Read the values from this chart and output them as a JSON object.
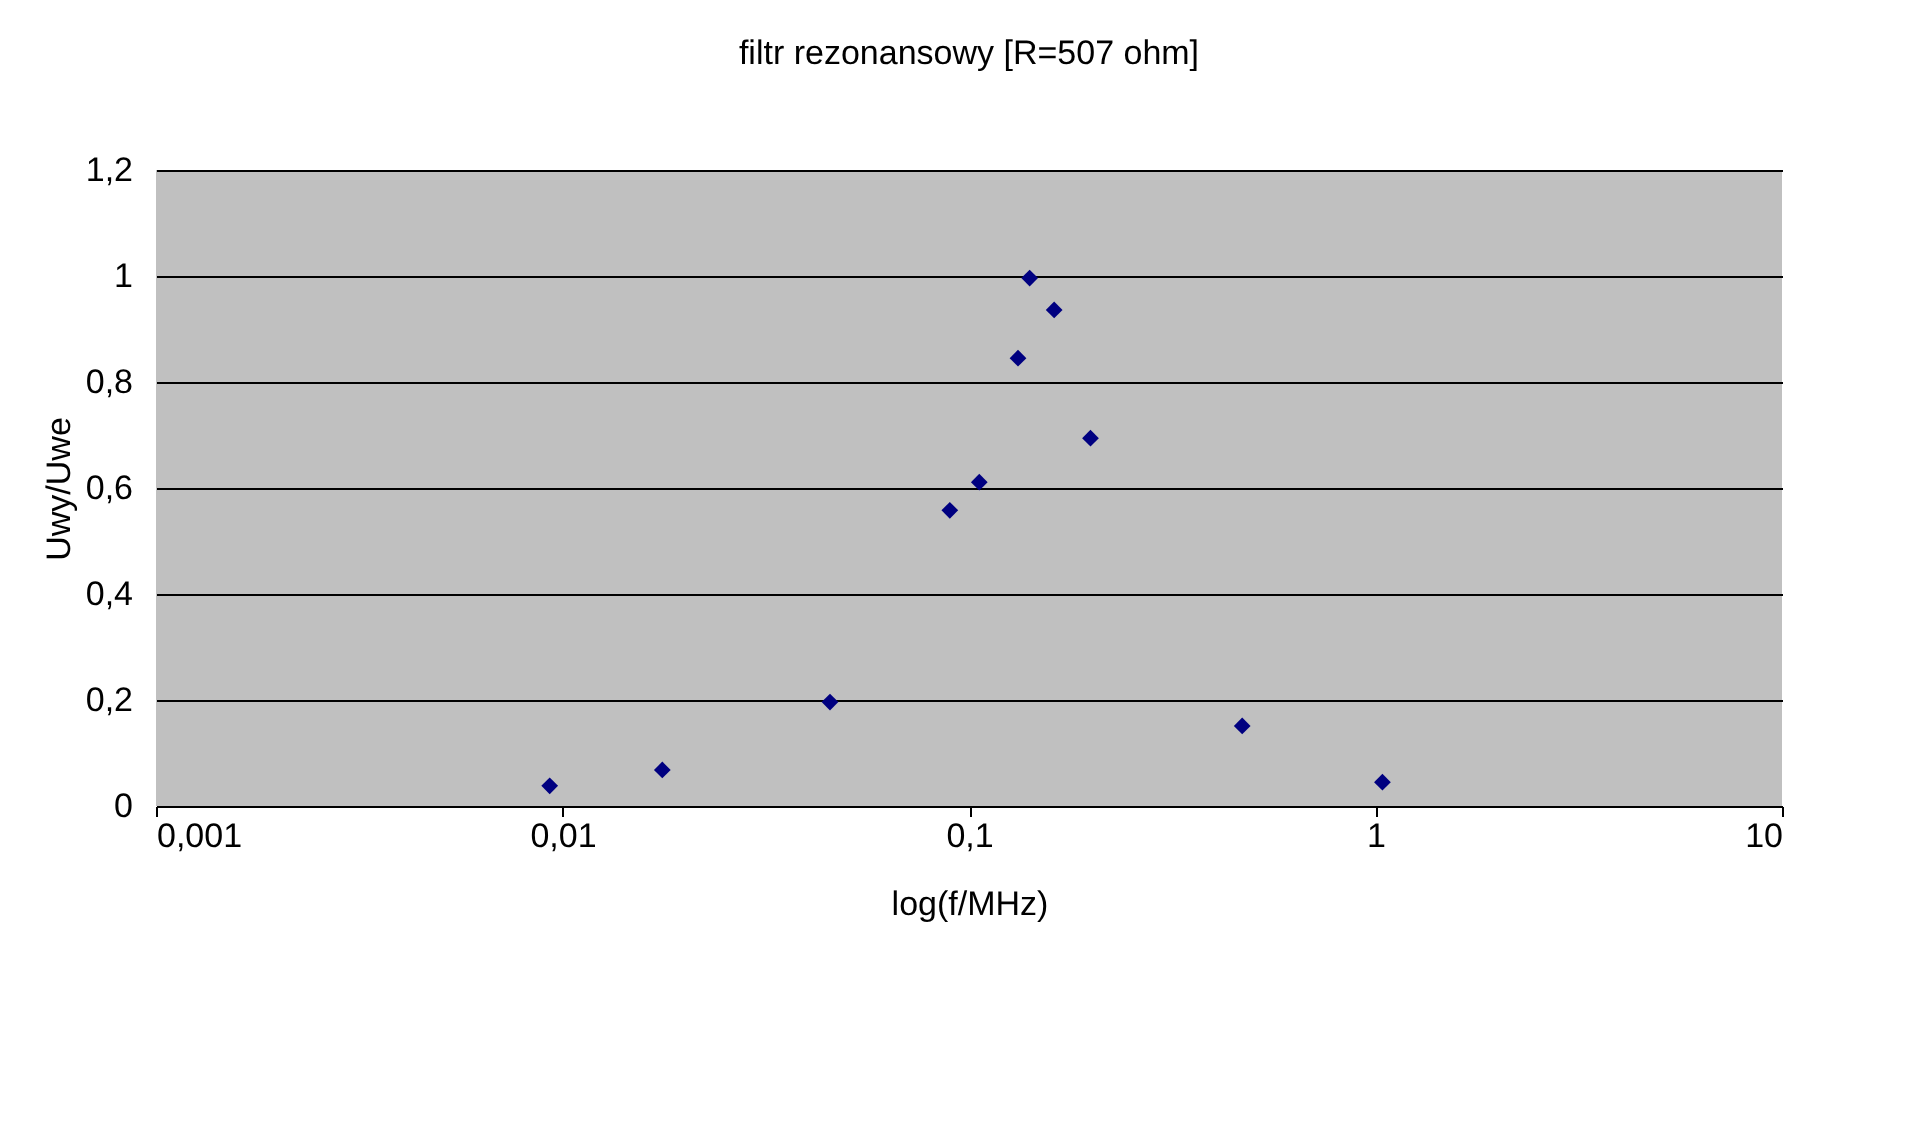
{
  "chart_data": {
    "type": "scatter",
    "title": "filtr rezonansowy [R=507 ohm]",
    "xlabel": "log(f/MHz)",
    "ylabel": "Uwy/Uwe",
    "x": [
      0.0093,
      0.0176,
      0.0455,
      0.0897,
      0.106,
      0.132,
      0.141,
      0.162,
      0.199,
      0.47,
      1.04
    ],
    "series": [
      {
        "color": "#000080",
        "values": [
          0.038,
          0.068,
          0.196,
          0.558,
          0.611,
          0.845,
          0.996,
          0.936,
          0.694,
          0.151,
          0.045
        ]
      }
    ],
    "xlim": [
      0.001,
      10
    ],
    "xticks": [
      {
        "value": 0.001,
        "label": "0,001"
      },
      {
        "value": 0.01,
        "label": "0,01"
      },
      {
        "value": 0.1,
        "label": "0,1"
      },
      {
        "value": 1,
        "label": "1"
      },
      {
        "value": 10,
        "label": "10"
      }
    ],
    "ylim": [
      0,
      1.2
    ],
    "yticks": [
      {
        "value": 0,
        "label": "0"
      },
      {
        "value": 0.2,
        "label": "0,2"
      },
      {
        "value": 0.4,
        "label": "0,4"
      },
      {
        "value": 0.6,
        "label": "0,6"
      },
      {
        "value": 0.8,
        "label": "0,8"
      },
      {
        "value": 1,
        "label": "1"
      },
      {
        "value": 1.2,
        "label": "1,2"
      }
    ],
    "log": "x",
    "grid": "y",
    "marker": "diamond"
  }
}
